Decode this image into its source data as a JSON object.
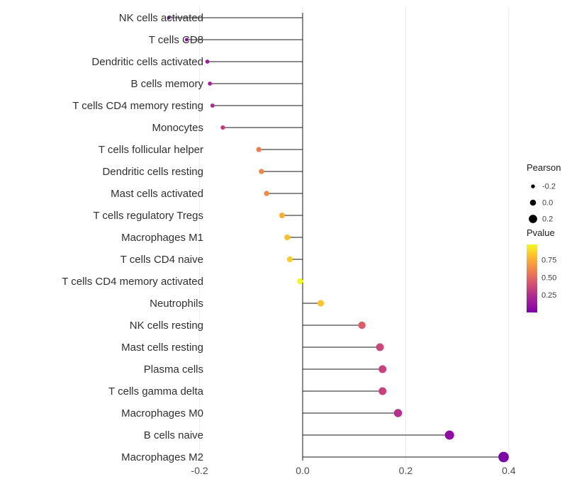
{
  "chart_data": {
    "type": "scatter",
    "subtype": "lollipop",
    "title": "",
    "xlabel": "",
    "ylabel": "",
    "categories": [
      "NK cells activated",
      "T cells CD8",
      "Dendritic cells activated",
      "B cells memory",
      "T cells CD4 memory resting",
      "Monocytes",
      "T cells follicular helper",
      "Dendritic cells resting",
      "Mast cells activated",
      "T cells regulatory  Tregs",
      "Macrophages M1",
      "T cells CD4 naive",
      "T cells CD4 memory activated",
      "Neutrophils",
      "NK cells resting",
      "Mast cells resting",
      "Plasma cells",
      "T cells gamma delta",
      "Macrophages M0",
      "B cells naive",
      "Macrophages M2"
    ],
    "series": [
      {
        "name": "Pearson",
        "values": [
          -0.26,
          -0.225,
          -0.185,
          -0.18,
          -0.175,
          -0.155,
          -0.085,
          -0.08,
          -0.07,
          -0.04,
          -0.03,
          -0.025,
          -0.005,
          0.035,
          0.115,
          0.15,
          0.155,
          0.155,
          0.185,
          0.285,
          0.39
        ]
      },
      {
        "name": "Pvalue",
        "values": [
          0.02,
          0.05,
          0.09,
          0.1,
          0.12,
          0.17,
          0.44,
          0.48,
          0.52,
          0.66,
          0.72,
          0.76,
          0.97,
          0.73,
          0.31,
          0.24,
          0.21,
          0.21,
          0.14,
          0.05,
          0.01
        ]
      }
    ],
    "point_colors": [
      "#7B02A8",
      "#8B0AA5",
      "#A01A9C",
      "#A62098",
      "#B02991",
      "#C23B81",
      "#EE7B51",
      "#F1854B",
      "#F58C46",
      "#FBAE32",
      "#FCC02A",
      "#FCCE25",
      "#F0F921",
      "#FCC428",
      "#DB5C68",
      "#CC4778",
      "#C8417C",
      "#C8417C",
      "#B52F8C",
      "#8F0DA3",
      "#7C03A8"
    ],
    "baseline": 0,
    "xticks": [
      "-0.2",
      "0.0",
      "0.2",
      "0.4"
    ],
    "xtick_values": [
      -0.2,
      0.0,
      0.2,
      0.4
    ],
    "xlim": [
      -0.3,
      0.44
    ],
    "grid": true,
    "legend_position": "right",
    "legend_size": {
      "title": "Pearson",
      "labels": [
        "-0.2",
        "0.0",
        "0.2"
      ],
      "values": [
        -0.2,
        0.0,
        0.2
      ]
    },
    "legend_color": {
      "title": "Pvalue",
      "labels": [
        "0.75",
        "0.50",
        "0.25"
      ],
      "values": [
        0.75,
        0.5,
        0.25
      ],
      "domain": [
        0.006,
        0.97
      ],
      "gradient_stops_top_to_bottom": [
        "#F0F921",
        "#FCCE25",
        "#FCA636",
        "#F1844B",
        "#E16462",
        "#CC4778",
        "#B12A90",
        "#9C179E",
        "#7C03A8"
      ]
    }
  },
  "colors": {
    "background": "#ffffff",
    "stem": "#1a1a1a",
    "grid": "#ebebeb",
    "axis_text": "#4d4d4d",
    "legend_dot": "#000000"
  }
}
